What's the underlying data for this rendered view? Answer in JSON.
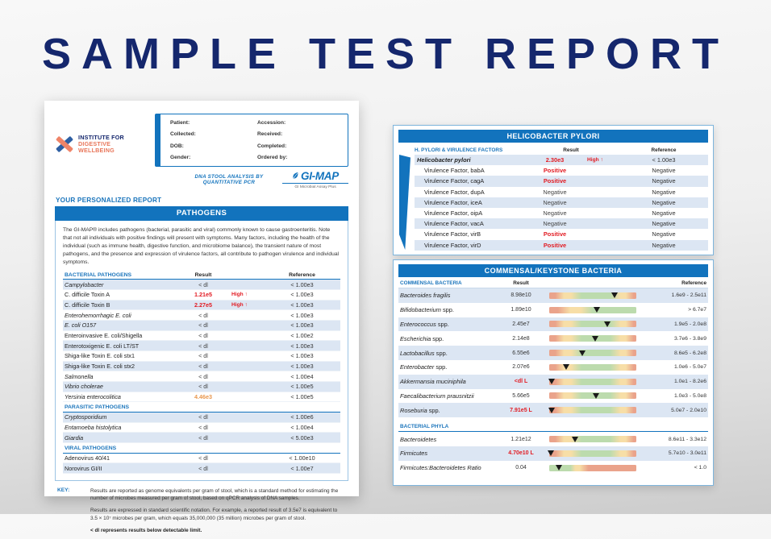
{
  "page_title": "SAMPLE TEST REPORT",
  "left_report": {
    "logo": {
      "line1": "INSTITUTE FOR",
      "line2": "DIGESTIVE WELLBEING"
    },
    "patient_box": {
      "left_fields": [
        "Patient:",
        "Collected:",
        "DOB:",
        "Gender:"
      ],
      "right_fields": [
        "Accession: ",
        "Received:",
        "Completed:",
        "Ordered by:"
      ]
    },
    "assay_line": "DNA STOOL ANALYSIS BY QUANTITATIVE PCR",
    "gimap_logo": {
      "name": "GI-MAP",
      "tagline": "GI Microbial Assay Plus"
    },
    "personalized": "YOUR PERSONALIZED REPORT",
    "section_title": "PATHOGENS",
    "intro": "The GI-MAP® includes pathogens (bacterial, parasitic and viral) commonly known to cause gastroenteritis. Note that not all individuals with positive findings will present with symptoms. Many factors, including the health of the individual (such as immune health, digestive function, and microbiome balance), the transient nature of most pathogens, and the presence and expression of virulence factors, all contribute to pathogen virulence and individual symptoms.",
    "columns": {
      "result": "Result",
      "reference": "Reference"
    },
    "groups": [
      {
        "label": "BACTERIAL PATHOGENS",
        "rows": [
          {
            "name": "Campylobacter",
            "italic": true,
            "result": "< dl",
            "result_class": "",
            "flag": "",
            "reference": "< 1.00e3"
          },
          {
            "name": "C. difficile Toxin A",
            "italic": false,
            "result": "1.21e5",
            "result_class": "red",
            "flag": "High ↑",
            "reference": "< 1.00e3"
          },
          {
            "name": "C. difficile Toxin B",
            "italic": false,
            "result": "2.27e5",
            "result_class": "red",
            "flag": "High ↑",
            "reference": "< 1.00e3"
          },
          {
            "name": "Enterohemorrhagic E. coli",
            "italic": true,
            "result": "< dl",
            "result_class": "",
            "flag": "",
            "reference": "< 1.00e3"
          },
          {
            "name": "E. coli O157",
            "italic": true,
            "result": "< dl",
            "result_class": "",
            "flag": "",
            "reference": "< 1.00e3"
          },
          {
            "name": "Enteroinvasive E. coli/Shigella",
            "italic": false,
            "result": "< dl",
            "result_class": "",
            "flag": "",
            "reference": "< 1.00e2"
          },
          {
            "name": "Enterotoxigenic E. coli LT/ST",
            "italic": false,
            "result": "< dl",
            "result_class": "",
            "flag": "",
            "reference": "< 1.00e3"
          },
          {
            "name": "Shiga-like Toxin E. coli stx1",
            "italic": false,
            "result": "< dl",
            "result_class": "",
            "flag": "",
            "reference": "< 1.00e3"
          },
          {
            "name": "Shiga-like Toxin E. coli stx2",
            "italic": false,
            "result": "< dl",
            "result_class": "",
            "flag": "",
            "reference": "< 1.00e3"
          },
          {
            "name": "Salmonella",
            "italic": true,
            "result": "< dl",
            "result_class": "",
            "flag": "",
            "reference": "< 1.00e4"
          },
          {
            "name": "Vibrio cholerae",
            "italic": true,
            "result": "< dl",
            "result_class": "",
            "flag": "",
            "reference": "< 1.00e5"
          },
          {
            "name": "Yersinia enterocolitica",
            "italic": true,
            "result": "4.46e3",
            "result_class": "orange",
            "flag": "",
            "reference": "< 1.00e5"
          }
        ]
      },
      {
        "label": "PARASITIC PATHOGENS",
        "rows": [
          {
            "name": "Cryptosporidium",
            "italic": true,
            "result": "< dl",
            "result_class": "",
            "flag": "",
            "reference": "< 1.00e6"
          },
          {
            "name": "Entamoeba histolytica",
            "italic": true,
            "result": "< dl",
            "result_class": "",
            "flag": "",
            "reference": "< 1.00e4"
          },
          {
            "name": "Giardia",
            "italic": true,
            "result": "< dl",
            "result_class": "",
            "flag": "",
            "reference": "< 5.00e3"
          }
        ]
      },
      {
        "label": "VIRAL PATHOGENS",
        "rows": [
          {
            "name": "Adenovirus 40/41",
            "italic": false,
            "result": "< dl",
            "result_class": "",
            "flag": "",
            "reference": "< 1.00e10"
          },
          {
            "name": "Norovirus GI/II",
            "italic": false,
            "result": "< dl",
            "result_class": "",
            "flag": "",
            "reference": "< 1.00e7"
          }
        ]
      }
    ],
    "key": {
      "label": "KEY:",
      "paragraphs": [
        "Results are reported as genome equivalents per gram of stool, which is a standard method for estimating the number of microbes measured per gram of stool, based on qPCR analysis of DNA samples.",
        "Results are expressed in standard scientific notation. For example, a reported result of 3.5e7 is equivalent to 3.5 × 10⁷ microbes per gram, which equals 35,000,000 (35 million) microbes per gram of stool.",
        "< dl represents results below detectable limit."
      ]
    }
  },
  "right_report": {
    "hp": {
      "title": "HELICOBACTER PYLORI",
      "col_label": "H. PYLORI & VIRULENCE FACTORS",
      "columns": {
        "result": "Result",
        "reference": "Reference"
      },
      "rows": [
        {
          "name": "Helicobacter pylori",
          "main": true,
          "result": "2.30e3",
          "result_class": "red",
          "flag": "High ↑",
          "reference": "< 1.00e3"
        },
        {
          "name": "Virulence Factor, babA",
          "main": false,
          "result": "Positive",
          "result_class": "red",
          "flag": "",
          "reference": "Negative"
        },
        {
          "name": "Virulence Factor, cagA",
          "main": false,
          "result": "Positive",
          "result_class": "red",
          "flag": "",
          "reference": "Negative"
        },
        {
          "name": "Virulence Factor, dupA",
          "main": false,
          "result": "Negative",
          "result_class": "",
          "flag": "",
          "reference": "Negative"
        },
        {
          "name": "Virulence Factor, iceA",
          "main": false,
          "result": "Negative",
          "result_class": "",
          "flag": "",
          "reference": "Negative"
        },
        {
          "name": "Virulence Factor, oipA",
          "main": false,
          "result": "Negative",
          "result_class": "",
          "flag": "",
          "reference": "Negative"
        },
        {
          "name": "Virulence Factor, vacA",
          "main": false,
          "result": "Negative",
          "result_class": "",
          "flag": "",
          "reference": "Negative"
        },
        {
          "name": "Virulence Factor, virB",
          "main": false,
          "result": "Positive",
          "result_class": "red",
          "flag": "",
          "reference": "Negative"
        },
        {
          "name": "Virulence Factor, virD",
          "main": false,
          "result": "Positive",
          "result_class": "red",
          "flag": "",
          "reference": "Negative"
        }
      ]
    },
    "commensal": {
      "title": "COMMENSAL/KEYSTONE BACTERIA",
      "col_label": "COMMENSAL BACTERIA",
      "columns": {
        "result": "Result",
        "reference": "Reference"
      },
      "rows": [
        {
          "name": "Bacteroides fragilis",
          "suffix": "",
          "result": "8.98e10",
          "result_class": "",
          "marker_pct": 75,
          "band": "standard",
          "reference": "1.6e9 - 2.5e11"
        },
        {
          "name": "Bifidobacterium",
          "suffix": " spp.",
          "result": "1.89e10",
          "result_class": "",
          "marker_pct": 55,
          "band": "green-right",
          "reference": "> 6.7e7"
        },
        {
          "name": "Enterococcus",
          "suffix": " spp.",
          "result": "2.45e7",
          "result_class": "",
          "marker_pct": 67,
          "band": "standard",
          "reference": "1.9e5 - 2.0e8"
        },
        {
          "name": "Escherichia",
          "suffix": " spp.",
          "result": "2.14e8",
          "result_class": "",
          "marker_pct": 53,
          "band": "standard",
          "reference": "3.7e6 - 3.8e9"
        },
        {
          "name": "Lactobacillus",
          "suffix": " spp.",
          "result": "6.55e6",
          "result_class": "",
          "marker_pct": 38,
          "band": "standard",
          "reference": "8.6e5 - 6.2e8"
        },
        {
          "name": "Enterobacter",
          "suffix": " spp.",
          "result": "2.07e6",
          "result_class": "",
          "marker_pct": 19,
          "band": "standard",
          "reference": "1.0e6 - 5.0e7"
        },
        {
          "name": "Akkermansia muciniphila",
          "suffix": "",
          "result": "<dl L",
          "result_class": "low",
          "marker_pct": 3,
          "band": "standard",
          "reference": "1.0e1 - 8.2e6"
        },
        {
          "name": "Faecalibacterium prausnitzii",
          "suffix": "",
          "result": "5.66e5",
          "result_class": "",
          "marker_pct": 54,
          "band": "standard",
          "reference": "1.0e3 - 5.0e8"
        },
        {
          "name": "Roseburia",
          "suffix": " spp.",
          "result": "7.91e5 L",
          "result_class": "low",
          "marker_pct": 3,
          "band": "standard",
          "reference": "5.0e7 - 2.0e10"
        }
      ],
      "phyla_label": "BACTERIAL PHYLA",
      "phyla_rows": [
        {
          "name": "Bacteroidetes",
          "suffix": "",
          "result": "1.21e12",
          "result_class": "",
          "marker_pct": 30,
          "band": "standard",
          "reference": "8.6e11 - 3.3e12"
        },
        {
          "name": "Firmicutes",
          "suffix": "",
          "result": "4.70e10 L",
          "result_class": "low",
          "marker_pct": 2,
          "band": "standard",
          "reference": "5.7e10 - 3.0e11"
        },
        {
          "name": "Firmicutes:Bacteroidetes Ratio",
          "suffix": "",
          "result": "0.04",
          "result_class": "",
          "marker_pct": 11,
          "band": "ratio",
          "reference": "< 1.0"
        }
      ]
    }
  },
  "colors": {
    "brand_blue": "#1273BD",
    "title_navy": "#15276D",
    "row_shade": "#DCE6F3",
    "alert_red": "#E21B22",
    "warn_orange": "#E9974E",
    "logo_coral": "#EF8468",
    "band_green": "#BCDBAD",
    "band_yellow": "#F7DEA7",
    "band_salmon": "#EAA38B"
  }
}
